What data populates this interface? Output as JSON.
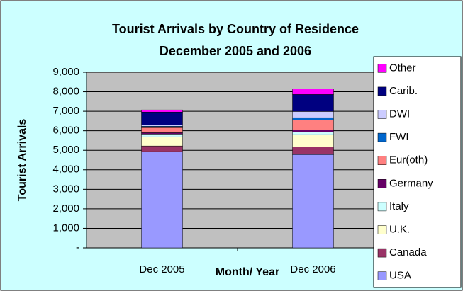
{
  "chart_data": {
    "type": "stacked_bar",
    "title": "Tourist Arrivals by Country of Residence",
    "subtitle": "December 2005 and 2006",
    "x_label": "Month/ Year",
    "y_label": "Tourist Arrivals",
    "categories": [
      "Dec 2005",
      "Dec 2006"
    ],
    "series": [
      {
        "name": "USA",
        "color": "#9999ff",
        "values": [
          4930,
          4780
        ]
      },
      {
        "name": "Canada",
        "color": "#993366",
        "values": [
          290,
          400
        ]
      },
      {
        "name": "U.K.",
        "color": "#ffffcc",
        "values": [
          470,
          620
        ]
      },
      {
        "name": "Italy",
        "color": "#ccffff",
        "values": [
          140,
          140
        ]
      },
      {
        "name": "Germany",
        "color": "#660066",
        "values": [
          70,
          110
        ]
      },
      {
        "name": "Eur(oth)",
        "color": "#ff8080",
        "values": [
          260,
          510
        ]
      },
      {
        "name": "FWI",
        "color": "#0066cc",
        "values": [
          70,
          110
        ]
      },
      {
        "name": "DWI",
        "color": "#ccccff",
        "values": [
          70,
          320
        ]
      },
      {
        "name": "Carib.",
        "color": "#000080",
        "values": [
          660,
          870
        ]
      },
      {
        "name": "Other",
        "color": "#ff00ff",
        "values": [
          110,
          290
        ]
      }
    ],
    "ylim": [
      0,
      9000
    ],
    "yticks": [
      {
        "value": 0,
        "label": "-"
      },
      {
        "value": 1000,
        "label": "1,000"
      },
      {
        "value": 2000,
        "label": "2,000"
      },
      {
        "value": 3000,
        "label": "3,000"
      },
      {
        "value": 4000,
        "label": "4,000"
      },
      {
        "value": 5000,
        "label": "5,000"
      },
      {
        "value": 6000,
        "label": "6,000"
      },
      {
        "value": 7000,
        "label": "7,000"
      },
      {
        "value": 8000,
        "label": "8,000"
      },
      {
        "value": 9000,
        "label": "9,000"
      }
    ],
    "grid": true,
    "legend": "right"
  }
}
